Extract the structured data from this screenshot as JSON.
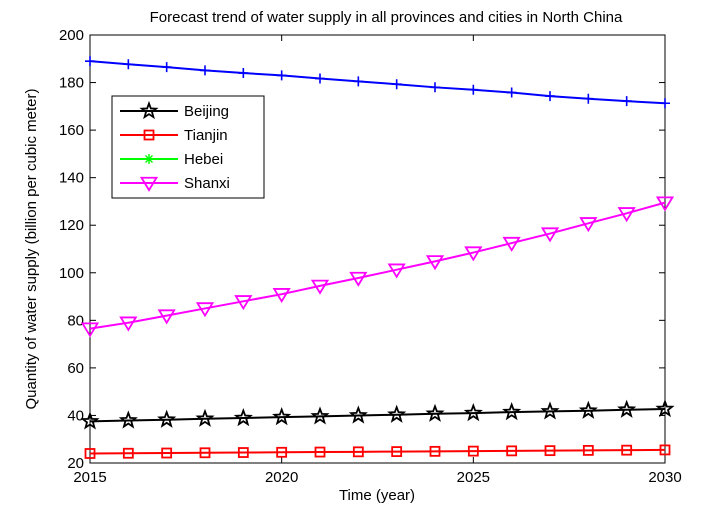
{
  "chart_data": {
    "type": "line",
    "title": "Forecast trend of water supply in all provinces and cities in North China",
    "xlabel": "Time (year)",
    "ylabel": "Quantity of water supply (billion per cubic meter)",
    "xlim": [
      2015,
      2030
    ],
    "ylim": [
      20,
      200
    ],
    "xticks": [
      2015,
      2020,
      2025,
      2030
    ],
    "yticks": [
      20,
      40,
      60,
      80,
      100,
      120,
      140,
      160,
      180,
      200
    ],
    "grid": false,
    "legend_position": "upper-left",
    "x": [
      2015,
      2016,
      2017,
      2018,
      2019,
      2020,
      2021,
      2022,
      2023,
      2024,
      2025,
      2026,
      2027,
      2028,
      2029,
      2030
    ],
    "series": [
      {
        "name": "Beijing",
        "color": "#000000",
        "marker": "star",
        "values": [
          37.5,
          37.9,
          38.2,
          38.6,
          38.9,
          39.3,
          39.6,
          40.0,
          40.3,
          40.7,
          41.0,
          41.4,
          41.7,
          42.0,
          42.4,
          42.7
        ]
      },
      {
        "name": "Tianjin",
        "color": "#ff0000",
        "marker": "square",
        "values": [
          24.0,
          24.1,
          24.2,
          24.3,
          24.4,
          24.5,
          24.6,
          24.7,
          24.8,
          24.9,
          25.0,
          25.1,
          25.2,
          25.3,
          25.4,
          25.5
        ]
      },
      {
        "name": "Hebei",
        "color": "#00ff00",
        "marker": "asterisk",
        "values": [
          null,
          null,
          null,
          null,
          null,
          null,
          null,
          null,
          null,
          null,
          null,
          null,
          null,
          null,
          null,
          null
        ]
      },
      {
        "name": "Shanxi",
        "color": "#ff00ff",
        "marker": "triangle-down",
        "values": [
          76.5,
          79.0,
          82.0,
          85.0,
          88.0,
          91.0,
          94.5,
          97.8,
          101.3,
          104.8,
          108.5,
          112.5,
          116.5,
          120.8,
          125.0,
          129.5
        ]
      },
      {
        "name": "",
        "color": "#0000ff",
        "marker": "plus",
        "values": [
          189.0,
          187.7,
          186.5,
          185.1,
          184.0,
          183.0,
          181.7,
          180.5,
          179.3,
          178.0,
          177.0,
          175.8,
          174.3,
          173.2,
          172.2,
          171.3
        ]
      }
    ]
  }
}
